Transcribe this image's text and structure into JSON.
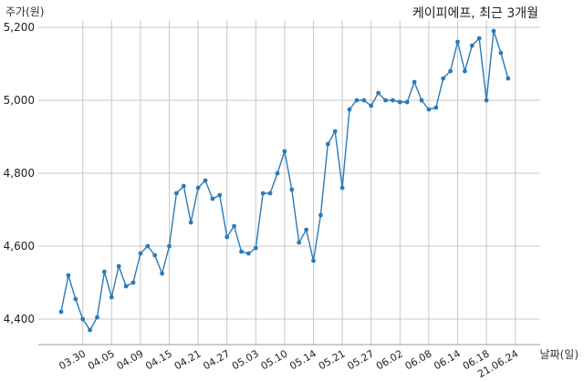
{
  "chart_data": {
    "type": "line",
    "title": "케이피에프, 최근 3개월",
    "ylabel": "주가(원)",
    "xlabel": "날짜(일)",
    "ylim": [
      4330,
      5220
    ],
    "yticks": [
      4400,
      4600,
      4800,
      5000,
      5200
    ],
    "ytick_labels": [
      "4,400",
      "4,600",
      "4,800",
      "5,000",
      "5,200"
    ],
    "xtick_labels": [
      "03.30",
      "04.05",
      "04.09",
      "04.15",
      "04.21",
      "04.27",
      "05.03",
      "05.10",
      "05.14",
      "05.21",
      "05.27",
      "06.02",
      "06.08",
      "06.14",
      "06.18",
      "21.06.24"
    ],
    "xtick_index": [
      3,
      7,
      11,
      15,
      19,
      23,
      27,
      31,
      35,
      39,
      43,
      47,
      51,
      55,
      59,
      63
    ],
    "grid": true,
    "color": "#2b7bb9",
    "series": [
      {
        "values": [
          4420,
          4520,
          4455,
          4400,
          4370,
          4405,
          4530,
          4460,
          4545,
          4490,
          4500,
          4580,
          4600,
          4575,
          4525,
          4600,
          4745,
          4765,
          4665,
          4760,
          4780,
          4730,
          4740,
          4625,
          4655,
          4585,
          4580,
          4595,
          4745,
          4745,
          4800,
          4860,
          4755,
          4610,
          4645,
          4560,
          4685,
          4880,
          4915,
          4760,
          4975,
          5000,
          5000,
          4985,
          5020,
          5000,
          5000,
          4995,
          4995,
          5050,
          5000,
          4975,
          4980,
          5060,
          5080,
          5160,
          5080,
          5150,
          5170,
          5000,
          5190,
          5130,
          5060
        ]
      }
    ]
  }
}
